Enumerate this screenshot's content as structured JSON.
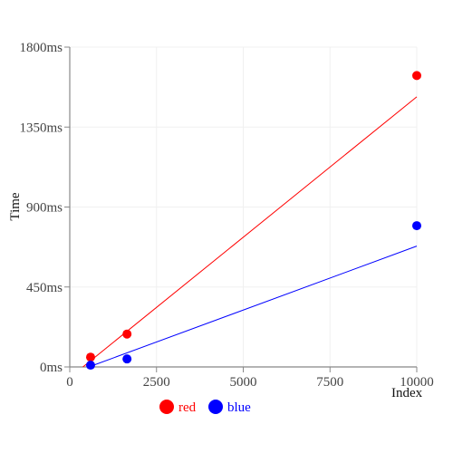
{
  "chart_data": {
    "type": "scatter",
    "xlabel": "Index",
    "ylabel": "Time",
    "xlim": [
      0,
      10000
    ],
    "ylim": [
      0,
      1800
    ],
    "x_ticks": [
      0,
      2500,
      5000,
      7500,
      10000
    ],
    "x_tick_labels": [
      "0",
      "2500",
      "5000",
      "7500",
      "10000"
    ],
    "y_ticks": [
      0,
      450,
      900,
      1350,
      1800
    ],
    "y_tick_labels": [
      "0ms",
      "450ms",
      "900ms",
      "1350ms",
      "1800ms"
    ],
    "grid": true,
    "legend_position": "bottom",
    "series": [
      {
        "name": "red",
        "color": "#ff0000",
        "points": [
          [
            600,
            55
          ],
          [
            1650,
            185
          ],
          [
            10000,
            1640
          ]
        ],
        "trendline": [
          [
            380,
            0
          ],
          [
            10000,
            1520
          ]
        ]
      },
      {
        "name": "blue",
        "color": "#0000ff",
        "points": [
          [
            600,
            10
          ],
          [
            1650,
            45
          ],
          [
            10000,
            795
          ]
        ],
        "trendline": [
          [
            550,
            0
          ],
          [
            10000,
            680
          ]
        ]
      }
    ]
  }
}
